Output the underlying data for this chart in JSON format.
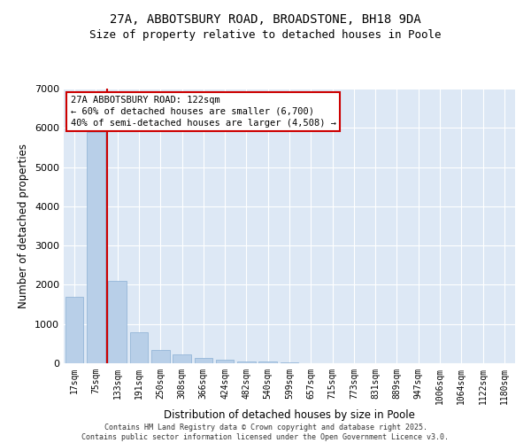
{
  "title_line1": "27A, ABBOTSBURY ROAD, BROADSTONE, BH18 9DA",
  "title_line2": "Size of property relative to detached houses in Poole",
  "xlabel": "Distribution of detached houses by size in Poole",
  "ylabel": "Number of detached properties",
  "categories": [
    "17sqm",
    "75sqm",
    "133sqm",
    "191sqm",
    "250sqm",
    "308sqm",
    "366sqm",
    "424sqm",
    "482sqm",
    "540sqm",
    "599sqm",
    "657sqm",
    "715sqm",
    "773sqm",
    "831sqm",
    "889sqm",
    "947sqm",
    "1006sqm",
    "1064sqm",
    "1122sqm",
    "1180sqm"
  ],
  "values": [
    1700,
    5900,
    2100,
    800,
    350,
    220,
    130,
    80,
    55,
    35,
    22,
    10,
    6,
    4,
    2,
    1,
    1,
    0,
    0,
    0,
    0
  ],
  "bar_color": "#b8cfe8",
  "bar_edge_color": "#8aafd4",
  "vline_color": "#cc0000",
  "vline_x_index": 1.5,
  "annotation_text": "27A ABBOTSBURY ROAD: 122sqm\n← 60% of detached houses are smaller (6,700)\n40% of semi-detached houses are larger (4,508) →",
  "annotation_box_color": "#cc0000",
  "ylim": [
    0,
    7000
  ],
  "yticks": [
    0,
    1000,
    2000,
    3000,
    4000,
    5000,
    6000,
    7000
  ],
  "background_color": "#dde8f5",
  "footnote": "Contains HM Land Registry data © Crown copyright and database right 2025.\nContains public sector information licensed under the Open Government Licence v3.0.",
  "title_fontsize": 10,
  "subtitle_fontsize": 9,
  "tick_fontsize": 7,
  "label_fontsize": 8.5
}
